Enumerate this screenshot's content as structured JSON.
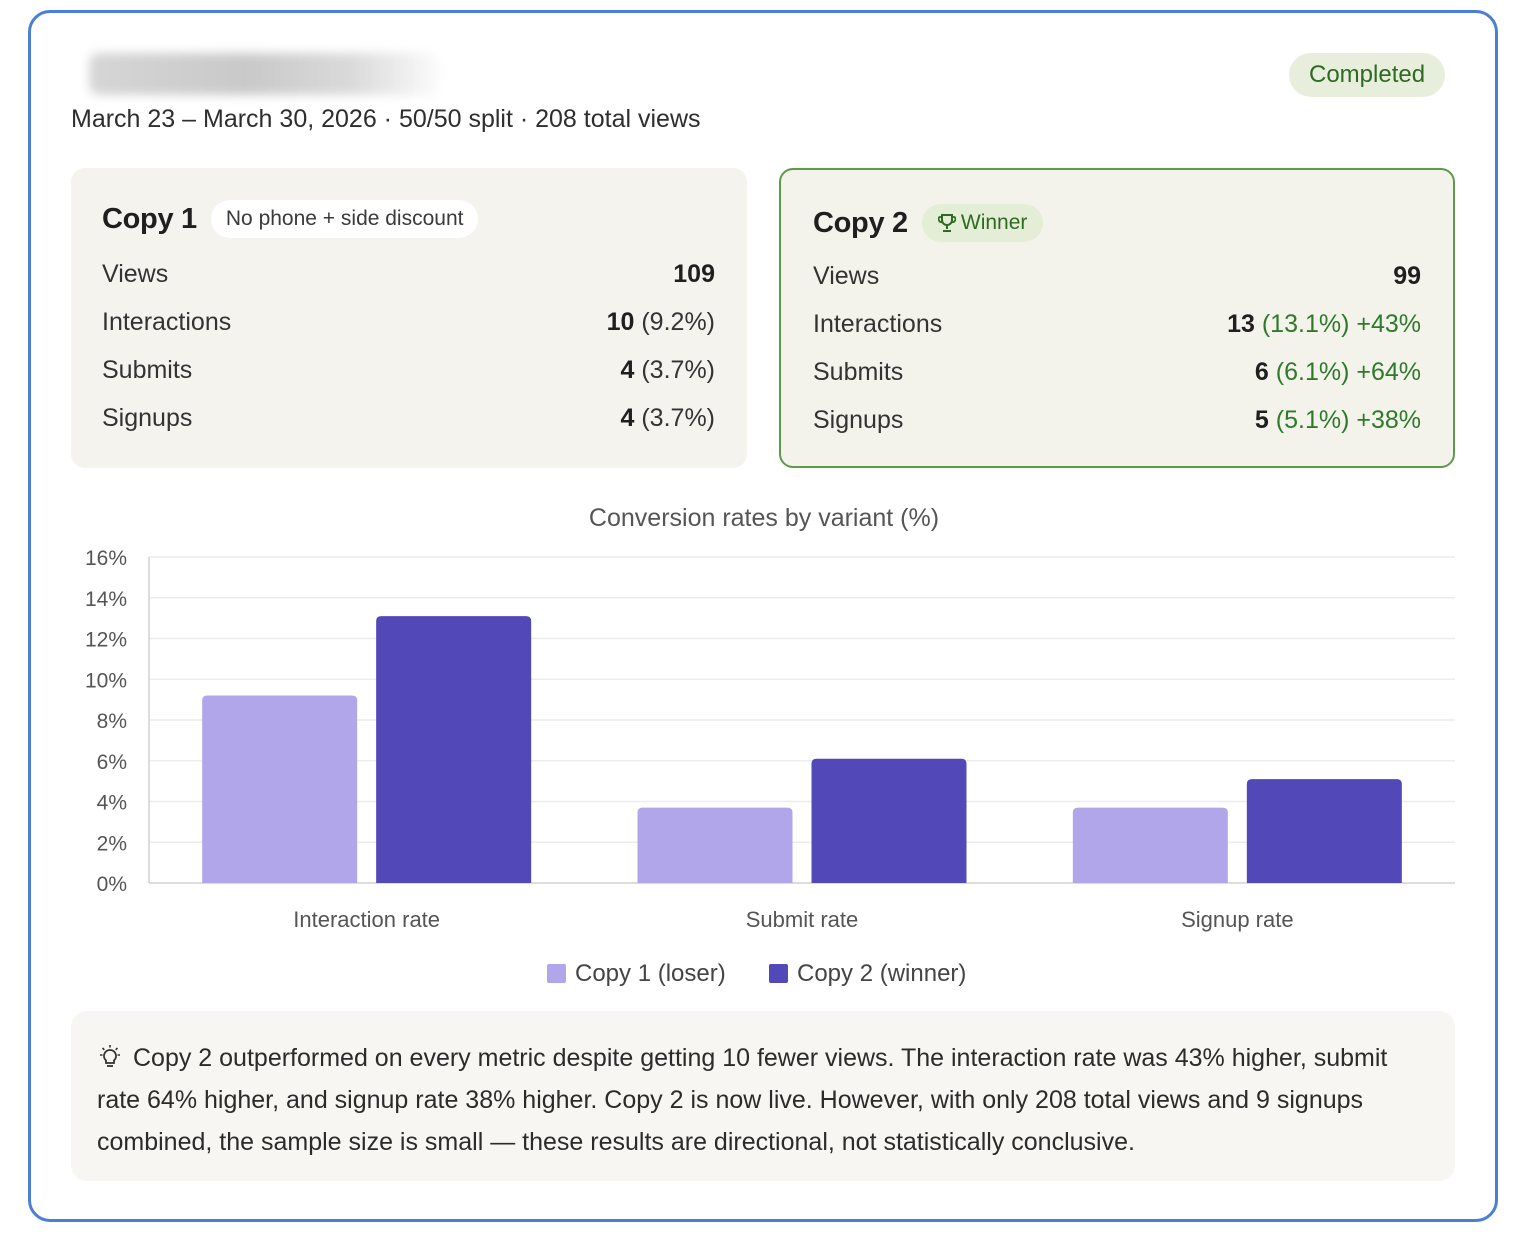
{
  "header": {
    "status": "Completed",
    "subtitle": "March 23 – March 30, 2026 · 50/50 split · 208 total views"
  },
  "variants": [
    {
      "name": "Copy 1",
      "tag": "No phone + side discount",
      "metrics": [
        {
          "label": "Views",
          "value": "109",
          "detail": "",
          "lift": ""
        },
        {
          "label": "Interactions",
          "value": "10",
          "detail": "(9.2%)",
          "lift": ""
        },
        {
          "label": "Submits",
          "value": "4",
          "detail": "(3.7%)",
          "lift": ""
        },
        {
          "label": "Signups",
          "value": "4",
          "detail": "(3.7%)",
          "lift": ""
        }
      ]
    },
    {
      "name": "Copy 2",
      "tag": "Winner",
      "tag_icon": "trophy-icon",
      "metrics": [
        {
          "label": "Views",
          "value": "99",
          "detail": "",
          "lift": ""
        },
        {
          "label": "Interactions",
          "value": "13",
          "detail": "(13.1%)",
          "lift": "+43%"
        },
        {
          "label": "Submits",
          "value": "6",
          "detail": "(6.1%)",
          "lift": "+64%"
        },
        {
          "label": "Signups",
          "value": "5",
          "detail": "(5.1%)",
          "lift": "+38%"
        }
      ]
    }
  ],
  "chart_data": {
    "type": "bar",
    "title": "Conversion rates by variant (%)",
    "categories": [
      "Interaction rate",
      "Submit rate",
      "Signup rate"
    ],
    "series": [
      {
        "name": "Copy 1 (loser)",
        "values": [
          9.2,
          3.7,
          3.7
        ],
        "color": "#b1a6ea"
      },
      {
        "name": "Copy 2 (winner)",
        "values": [
          13.1,
          6.1,
          5.1
        ],
        "color": "#5248b8"
      }
    ],
    "ylim": [
      0,
      16
    ],
    "yticks": [
      "0%",
      "2%",
      "4%",
      "6%",
      "8%",
      "10%",
      "12%",
      "14%",
      "16%"
    ],
    "grid": true,
    "legend": "bottom-center"
  },
  "insight": {
    "icon": "lightbulb-icon",
    "text": "Copy 2 outperformed on every metric despite getting 10 fewer views. The interaction rate was 43% higher, submit rate 64% higher, and signup rate 38% higher. Copy 2 is now live. However, with only 208 total views and 9 signups combined, the sample size is small — these results are directional, not statistically conclusive."
  },
  "colors": {
    "frame_border": "#4a7fd4",
    "positive": "#2f7a2a",
    "winner_border": "#5b9b4a"
  }
}
